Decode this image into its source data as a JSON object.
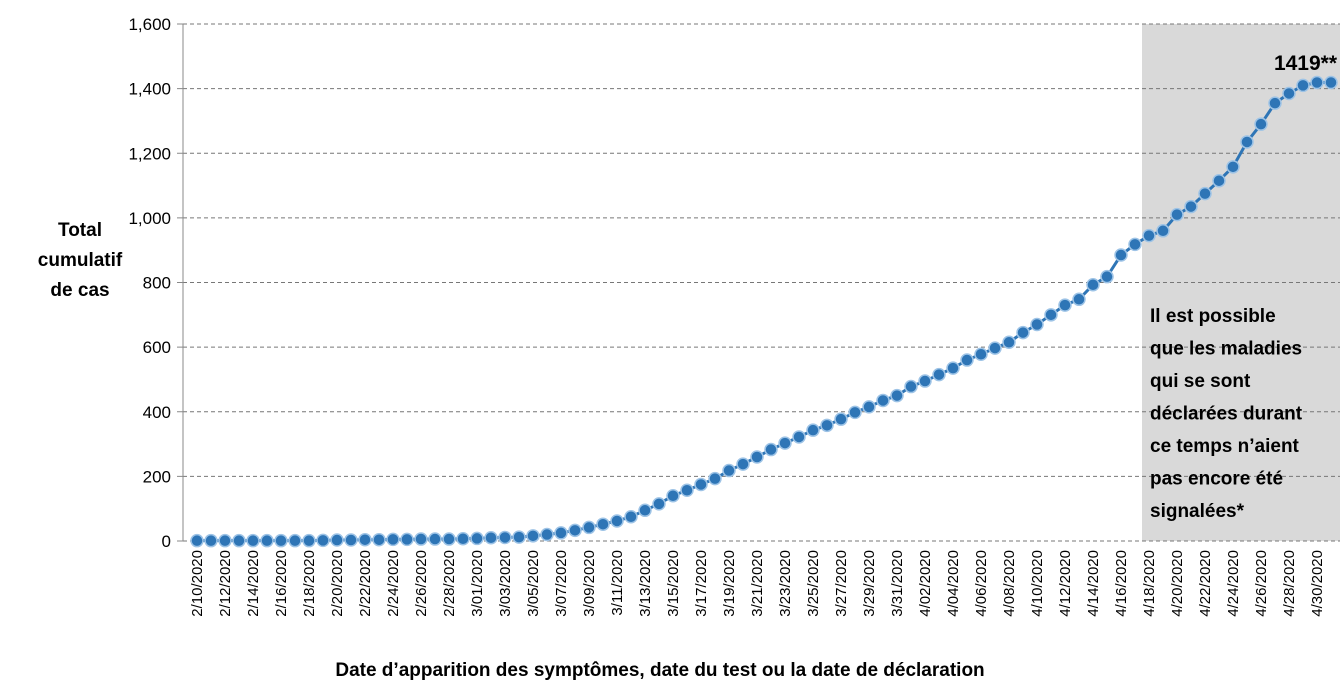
{
  "chart_data": {
    "type": "line",
    "y_label": [
      "Total",
      "cumulatif",
      "de cas"
    ],
    "x_label": "Date d’apparition des symptômes, date du test ou la date de déclaration",
    "categories": [
      "2/10/2020",
      null,
      "2/12/2020",
      null,
      "2/14/2020",
      null,
      "2/16/2020",
      null,
      "2/18/2020",
      null,
      "2/20/2020",
      null,
      "2/22/2020",
      null,
      "2/24/2020",
      null,
      "2/26/2020",
      null,
      "2/28/2020",
      null,
      "3/01/2020",
      null,
      "3/03/2020",
      null,
      "3/05/2020",
      null,
      "3/07/2020",
      null,
      "3/09/2020",
      null,
      "3/11/2020",
      null,
      "3/13/2020",
      null,
      "3/15/2020",
      null,
      "3/17/2020",
      null,
      "3/19/2020",
      null,
      "3/21/2020",
      null,
      "3/23/2020",
      null,
      "3/25/2020",
      null,
      "3/27/2020",
      null,
      "3/29/2020",
      null,
      "3/31/2020",
      null,
      "4/02/2020",
      null,
      "4/04/2020",
      null,
      "4/06/2020",
      null,
      "4/08/2020",
      null,
      "4/10/2020",
      null,
      "4/12/2020",
      null,
      "4/14/2020",
      null,
      "4/16/2020",
      null,
      "4/18/2020",
      null,
      "4/20/2020",
      null,
      "4/22/2020",
      null,
      "4/24/2020",
      null,
      "4/26/2020",
      null,
      "4/28/2020",
      null,
      "4/30/2020",
      null
    ],
    "series": [
      {
        "color": "#2e75b6",
        "values": [
          1,
          1,
          1,
          1,
          1,
          1,
          1,
          1,
          1,
          2,
          3,
          3,
          4,
          4,
          5,
          5,
          6,
          6,
          6,
          7,
          8,
          10,
          11,
          12,
          16,
          20,
          25,
          33,
          42,
          52,
          62,
          75,
          95,
          115,
          140,
          157,
          175,
          193,
          218,
          238,
          260,
          283,
          303,
          322,
          343,
          358,
          377,
          398,
          415,
          435,
          450,
          478,
          495,
          515,
          535,
          560,
          578,
          597,
          615,
          645,
          670,
          700,
          730,
          748,
          793,
          818,
          885,
          918,
          945,
          960,
          1010,
          1035,
          1075,
          1115,
          1158,
          1235,
          1290,
          1355,
          1385,
          1410,
          1419,
          1419
        ]
      }
    ],
    "ylim": [
      0,
      1600
    ],
    "yticks": [
      0,
      200,
      400,
      600,
      800,
      {
        "value": 1000,
        "label": "1,000"
      },
      {
        "value": 1200,
        "label": "1,200"
      },
      {
        "value": 1400,
        "label": "1,400"
      },
      {
        "value": 1600,
        "label": "1,600"
      }
    ],
    "grid": true,
    "shaded_from": "4/18/2020",
    "shade_color": "#d9d9d9",
    "annotations": [
      {
        "text": "1419**"
      },
      {
        "lines": [
          "Il est possible",
          "que les maladies",
          "qui se sont",
          "déclarées durant",
          "ce temps n’aient",
          "pas encore été",
          "signalées*"
        ]
      }
    ]
  }
}
